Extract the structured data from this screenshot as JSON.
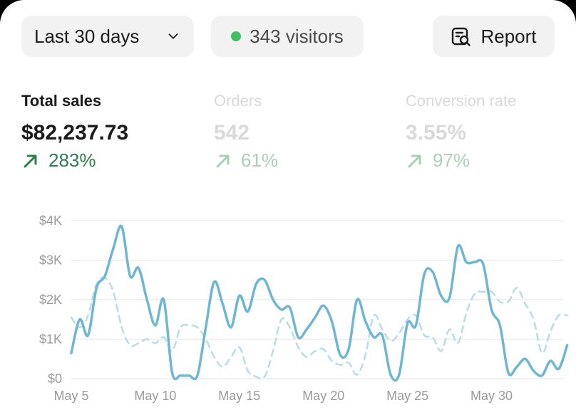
{
  "toolbar": {
    "range_label": "Last 30 days",
    "visitors_label": "343 visitors",
    "report_label": "Report"
  },
  "metrics": [
    {
      "label": "Total sales",
      "value": "$82,237.73",
      "delta": "283%",
      "active": true
    },
    {
      "label": "Orders",
      "value": "542",
      "delta": "61%",
      "active": false
    },
    {
      "label": "Conversion rate",
      "value": "3.55%",
      "delta": "97%",
      "active": false
    }
  ],
  "colors": {
    "accent_line": "#6fb6d3",
    "comparison_line": "#b7dcea",
    "visitor_dot": "#3fbf5d",
    "positive_delta": "#2e7d4f"
  },
  "chart_data": {
    "type": "line",
    "ylim": [
      0,
      4000
    ],
    "y_ticks": [
      "$0",
      "$1K",
      "$2K",
      "$3K",
      "$4K"
    ],
    "y_tick_values": [
      0,
      1000,
      2000,
      3000,
      4000
    ],
    "x_ticks": [
      "May 5",
      "May 10",
      "May 15",
      "May 20",
      "May 25",
      "May 30"
    ],
    "x_tick_values": [
      5,
      10,
      15,
      20,
      25,
      30
    ],
    "x_range": [
      5,
      34.6
    ],
    "grid": true,
    "series": [
      {
        "style": "solid",
        "x": [
          5,
          5.5,
          6,
          6.5,
          7,
          7.5,
          8,
          8.5,
          9,
          9.5,
          10,
          10.5,
          11,
          11.5,
          12,
          12.5,
          13,
          13.5,
          14,
          14.5,
          15,
          15.5,
          16,
          16.5,
          17,
          17.5,
          18,
          18.5,
          19,
          19.5,
          20,
          20.5,
          21,
          21.5,
          22,
          22.5,
          23,
          23.5,
          24,
          24.5,
          25,
          25.5,
          26,
          26.5,
          27,
          27.5,
          28,
          28.5,
          29,
          29.5,
          30,
          30.5,
          31,
          31.5,
          32,
          32.5,
          33,
          33.5,
          34,
          34.5
        ],
        "values": [
          650,
          1500,
          1100,
          2300,
          2600,
          3300,
          3850,
          2600,
          2800,
          2000,
          1350,
          2000,
          150,
          80,
          80,
          80,
          1300,
          2450,
          1900,
          1300,
          2100,
          1700,
          2400,
          2500,
          2000,
          1750,
          1800,
          1050,
          1250,
          1550,
          1850,
          1450,
          600,
          750,
          2000,
          1450,
          1050,
          1100,
          100,
          100,
          1400,
          1350,
          2650,
          2700,
          2100,
          2050,
          3350,
          2950,
          2950,
          2900,
          1750,
          1350,
          150,
          300,
          500,
          200,
          80,
          450,
          250,
          850
        ]
      },
      {
        "style": "dashed",
        "x": [
          5,
          5.5,
          6,
          6.5,
          7,
          7.5,
          8,
          8.5,
          9,
          9.5,
          10,
          10.5,
          11,
          11.5,
          12,
          12.5,
          13,
          13.5,
          14,
          14.5,
          15,
          15.5,
          16,
          16.5,
          17,
          17.5,
          18,
          18.5,
          19,
          19.5,
          20,
          20.5,
          21,
          21.5,
          22,
          22.5,
          23,
          23.5,
          24,
          24.5,
          25,
          25.5,
          26,
          26.5,
          27,
          27.5,
          28,
          28.5,
          29,
          29.5,
          30,
          30.5,
          31,
          31.5,
          32,
          32.5,
          33,
          33.5,
          34,
          34.5
        ],
        "values": [
          1550,
          1300,
          1600,
          2400,
          2550,
          2200,
          1300,
          850,
          900,
          1000,
          900,
          1050,
          700,
          1300,
          1350,
          1300,
          1000,
          550,
          300,
          550,
          800,
          200,
          50,
          50,
          700,
          1500,
          1300,
          800,
          550,
          700,
          750,
          450,
          350,
          400,
          100,
          600,
          1600,
          1250,
          950,
          1150,
          1500,
          1600,
          1100,
          1050,
          700,
          1250,
          900,
          1650,
          2150,
          2200,
          2200,
          1950,
          1950,
          2300,
          1900,
          1500,
          650,
          1200,
          1600,
          1600
        ]
      }
    ]
  }
}
